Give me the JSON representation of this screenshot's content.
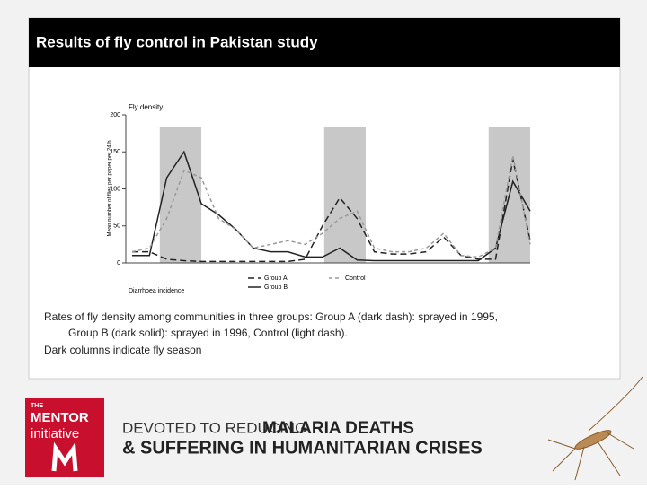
{
  "slide_title": "Results of fly control in Pakistan study",
  "chart_data": {
    "type": "line",
    "title": "Fly density",
    "ylabel": "Mean number of flies per paper per 24 h",
    "x": [
      0,
      1,
      2,
      3,
      4,
      5,
      6,
      7,
      8,
      9,
      10,
      11,
      12,
      13,
      14,
      15,
      16,
      17,
      18,
      19,
      20,
      21,
      22,
      23
    ],
    "xlim": [
      0,
      23
    ],
    "ylim": [
      0,
      200
    ],
    "yticks": [
      0,
      50,
      100,
      150,
      200
    ],
    "bands": [
      [
        1.6,
        4
      ],
      [
        11.1,
        13.5
      ],
      [
        20.6,
        23
      ]
    ],
    "band_color": "#c8c8c8",
    "series": [
      {
        "name": "Group A",
        "color": "#222222",
        "dash": "7,4",
        "values": [
          15,
          15,
          5,
          3,
          2,
          2,
          2,
          2,
          2,
          2,
          5,
          50,
          88,
          60,
          15,
          12,
          12,
          15,
          35,
          10,
          5,
          5,
          140,
          30
        ]
      },
      {
        "name": "Group B",
        "color": "#222222",
        "dash": "",
        "values": [
          10,
          10,
          115,
          150,
          80,
          65,
          45,
          20,
          15,
          15,
          8,
          8,
          20,
          4,
          3,
          3,
          3,
          3,
          3,
          3,
          3,
          20,
          110,
          70
        ]
      },
      {
        "name": "Control",
        "color": "#9a9a9a",
        "dash": "4,3",
        "values": [
          15,
          20,
          60,
          125,
          115,
          60,
          45,
          20,
          25,
          30,
          25,
          40,
          60,
          70,
          20,
          15,
          15,
          20,
          40,
          10,
          8,
          20,
          145,
          25
        ]
      }
    ],
    "footnote": "Diarrhoea incidence"
  },
  "caption": [
    "Rates of fly density among communities in three groups: Group A (dark dash): sprayed in 1995,",
    "Group B (dark solid): sprayed in 1996, Control (light dash).",
    "Dark columns indicate fly season"
  ],
  "footer": {
    "logo": [
      "THE",
      "MENTOR",
      "initiative"
    ],
    "tagline": [
      "DEVOTED TO REDUCING",
      "MALARIA DEATHS",
      "& SUFFERING IN HUMANITARIAN CRISES"
    ]
  }
}
